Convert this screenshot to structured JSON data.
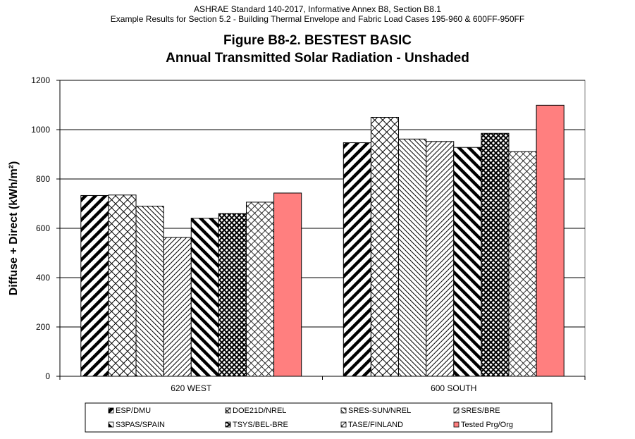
{
  "header": {
    "line1": "ASHRAE Standard 140-2017, Informative Annex B8, Section B8.1",
    "line2": "Example Results for Section 5.2 - Building Thermal Envelope and Fabric Load Cases 195-960 & 600FF-950FF"
  },
  "chart_data": {
    "type": "bar",
    "title": "Figure B8-2.  BESTEST BASIC",
    "subtitle": "Annual Transmitted Solar Radiation - Unshaded",
    "ylabel": "Diffuse + Direct (kWh/m²)",
    "xlabel": "",
    "ylim": [
      0,
      1200
    ],
    "yticks": [
      0,
      200,
      400,
      600,
      800,
      1000,
      1200
    ],
    "grid": true,
    "legend_position": "bottom",
    "categories": [
      "620 WEST",
      "600 SOUTH"
    ],
    "series": [
      {
        "name": "ESP/DMU",
        "values": [
          733,
          947
        ],
        "pattern": "diag-fwd-thick",
        "color": "#000000"
      },
      {
        "name": "DOE21D/NREL",
        "values": [
          735,
          1050
        ],
        "pattern": "crosshatch",
        "color": "#000000"
      },
      {
        "name": "SRES-SUN/NREL",
        "values": [
          690,
          962
        ],
        "pattern": "diag-back-thin",
        "color": "#000000"
      },
      {
        "name": "SRES/BRE",
        "values": [
          563,
          952
        ],
        "pattern": "diag-fwd-thin",
        "color": "#000000"
      },
      {
        "name": "S3PAS/SPAIN",
        "values": [
          641,
          928
        ],
        "pattern": "diag-back-thick",
        "color": "#000000"
      },
      {
        "name": "TSYS/BEL-BRE",
        "values": [
          660,
          985
        ],
        "pattern": "dense-cross",
        "color": "#000000"
      },
      {
        "name": "TASE/FINLAND",
        "values": [
          706,
          911
        ],
        "pattern": "diamond",
        "color": "#000000"
      },
      {
        "name": "Tested Prg/Org",
        "values": [
          743,
          1099
        ],
        "pattern": "solid",
        "color": "#ff7f7f"
      }
    ]
  }
}
